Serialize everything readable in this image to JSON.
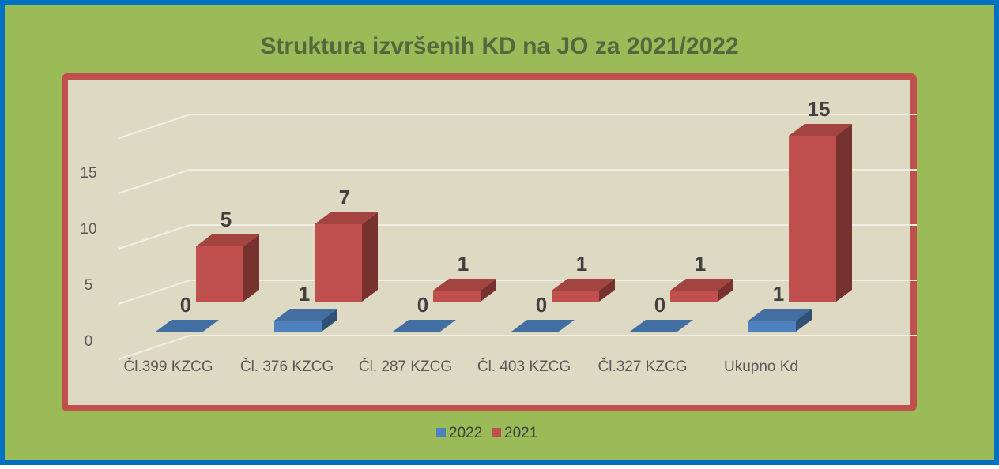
{
  "chart_data": {
    "type": "bar3d",
    "title": "Struktura izvršenih KD na JO za 2021/2022",
    "categories": [
      "Čl.399 KZCG",
      "Čl. 376 KZCG",
      "Čl. 287 KZCG",
      "Čl. 403 KZCG",
      "Čl.327 KZCG",
      "Ukupno Kd"
    ],
    "series": [
      {
        "name": "2022",
        "color": "#4f81bd",
        "values": [
          0,
          1,
          0,
          0,
          0,
          1
        ]
      },
      {
        "name": "2021",
        "color": "#c0504d",
        "values": [
          5,
          7,
          1,
          1,
          1,
          15
        ]
      }
    ],
    "ylim": [
      0,
      20
    ],
    "yticks": [
      0,
      5,
      10,
      15
    ],
    "grid": true,
    "legend": "bottom"
  }
}
